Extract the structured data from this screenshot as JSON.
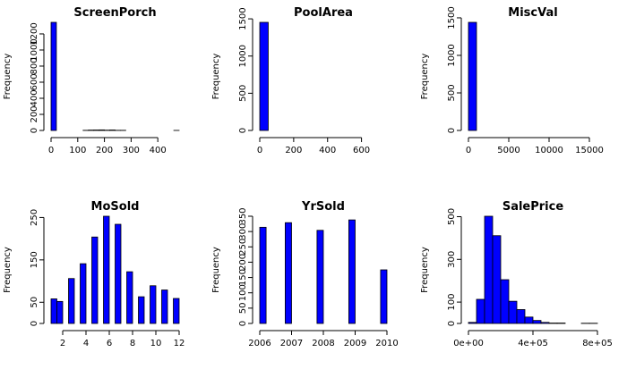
{
  "colors": {
    "bar_fill": "#0000ff",
    "bar_stroke": "#000000",
    "axis": "#000000",
    "background": "#ffffff"
  },
  "chart_data": [
    {
      "type": "bar",
      "title": "ScreenPorch",
      "ylabel": "Frequency",
      "xlabel": "",
      "bins": [
        [
          0,
          20,
          1344
        ],
        [
          20,
          40,
          0
        ],
        [
          40,
          60,
          0
        ],
        [
          60,
          80,
          0
        ],
        [
          80,
          100,
          0
        ],
        [
          100,
          120,
          0
        ],
        [
          120,
          140,
          2
        ],
        [
          140,
          160,
          5
        ],
        [
          160,
          180,
          6
        ],
        [
          180,
          200,
          7
        ],
        [
          200,
          220,
          4
        ],
        [
          220,
          240,
          6
        ],
        [
          240,
          260,
          2
        ],
        [
          260,
          280,
          2
        ],
        [
          280,
          300,
          0
        ],
        [
          300,
          320,
          0
        ],
        [
          320,
          340,
          0
        ],
        [
          340,
          360,
          0
        ],
        [
          360,
          380,
          0
        ],
        [
          380,
          400,
          0
        ],
        [
          400,
          420,
          0
        ],
        [
          420,
          440,
          0
        ],
        [
          440,
          460,
          0
        ],
        [
          460,
          480,
          1
        ]
      ],
      "xlim": [
        0,
        480
      ],
      "ylim": [
        0,
        1344
      ],
      "xticks": [
        0,
        100,
        200,
        300,
        400
      ],
      "xticklabels": [
        "0",
        "100",
        "200",
        "300",
        "400"
      ],
      "yticks": [
        0,
        200,
        400,
        600,
        800,
        1000,
        1200
      ],
      "yticklabels": [
        "0",
        "200",
        "400",
        "600",
        "800",
        "1000",
        "1200"
      ]
    },
    {
      "type": "bar",
      "title": "PoolArea",
      "ylabel": "Frequency",
      "xlabel": "",
      "bins": [
        [
          0,
          50,
          1453
        ],
        [
          50,
          100,
          0
        ],
        [
          100,
          150,
          0
        ],
        [
          150,
          200,
          0
        ],
        [
          200,
          250,
          0
        ],
        [
          250,
          300,
          0
        ],
        [
          300,
          350,
          0
        ],
        [
          350,
          400,
          0
        ],
        [
          400,
          450,
          0
        ],
        [
          450,
          500,
          0
        ],
        [
          500,
          550,
          0
        ],
        [
          550,
          600,
          0
        ],
        [
          600,
          650,
          0
        ],
        [
          650,
          700,
          0
        ],
        [
          700,
          750,
          0
        ]
      ],
      "xlim": [
        0,
        750
      ],
      "ylim": [
        0,
        1453
      ],
      "xticks": [
        0,
        200,
        400,
        600
      ],
      "xticklabels": [
        "0",
        "200",
        "400",
        "600"
      ],
      "yticks": [
        0,
        500,
        1000,
        1500
      ],
      "yticklabels": [
        "0",
        "500",
        "1000",
        "1500"
      ]
    },
    {
      "type": "bar",
      "title": "MiscVal",
      "ylabel": "Frequency",
      "xlabel": "",
      "bins": [
        [
          0,
          1000,
          1440
        ],
        [
          1000,
          2000,
          0
        ],
        [
          2000,
          3000,
          0
        ],
        [
          3000,
          4000,
          0
        ],
        [
          4000,
          5000,
          0
        ],
        [
          5000,
          6000,
          0
        ],
        [
          6000,
          7000,
          0
        ],
        [
          7000,
          8000,
          0
        ],
        [
          8000,
          9000,
          0
        ],
        [
          9000,
          10000,
          0
        ],
        [
          10000,
          11000,
          0
        ],
        [
          11000,
          12000,
          0
        ],
        [
          12000,
          13000,
          0
        ],
        [
          13000,
          14000,
          0
        ],
        [
          14000,
          15000,
          0
        ],
        [
          15000,
          16000,
          0
        ]
      ],
      "xlim": [
        0,
        16000
      ],
      "ylim": [
        0,
        1440
      ],
      "xticks": [
        0,
        5000,
        10000,
        15000
      ],
      "xticklabels": [
        "0",
        "5000",
        "10000",
        "15000"
      ],
      "yticks": [
        0,
        500,
        1000,
        1500
      ],
      "yticklabels": [
        "0",
        "500",
        "1000",
        "1500"
      ]
    },
    {
      "type": "bar",
      "title": "MoSold",
      "ylabel": "Frequency",
      "xlabel": "",
      "bins": [
        [
          1.0,
          1.5,
          58
        ],
        [
          1.5,
          2.0,
          52
        ],
        [
          2.5,
          3.0,
          106
        ],
        [
          3.5,
          4.0,
          141
        ],
        [
          4.5,
          5.0,
          204
        ],
        [
          5.5,
          6.0,
          253
        ],
        [
          6.5,
          7.0,
          234
        ],
        [
          7.5,
          8.0,
          122
        ],
        [
          8.5,
          9.0,
          63
        ],
        [
          9.5,
          10.0,
          89
        ],
        [
          10.5,
          11.0,
          79
        ],
        [
          11.5,
          12.0,
          59
        ]
      ],
      "xlim": [
        1,
        12
      ],
      "ylim": [
        0,
        253
      ],
      "xticks": [
        2,
        4,
        6,
        8,
        10,
        12
      ],
      "xticklabels": [
        "2",
        "4",
        "6",
        "8",
        "10",
        "12"
      ],
      "yticks": [
        0,
        50,
        150,
        250
      ],
      "yticklabels": [
        "0",
        "50",
        "150",
        "250"
      ]
    },
    {
      "type": "bar",
      "title": "YrSold",
      "ylabel": "Frequency",
      "xlabel": "",
      "bins": [
        [
          2006.0,
          2006.2,
          314
        ],
        [
          2006.8,
          2007.0,
          329
        ],
        [
          2007.8,
          2008.0,
          304
        ],
        [
          2008.8,
          2009.0,
          338
        ],
        [
          2009.8,
          2010.0,
          175
        ]
      ],
      "xlim": [
        2006,
        2010
      ],
      "ylim": [
        0,
        350
      ],
      "xticks": [
        2006,
        2007,
        2008,
        2009,
        2010
      ],
      "xticklabels": [
        "2006",
        "2007",
        "2008",
        "2009",
        "2010"
      ],
      "yticks": [
        0,
        50,
        100,
        150,
        200,
        250,
        300,
        350
      ],
      "yticklabels": [
        "0",
        "50",
        "100",
        "150",
        "200",
        "250",
        "300",
        "350"
      ]
    },
    {
      "type": "bar",
      "title": "SalePrice",
      "ylabel": "Frequency",
      "xlabel": "",
      "bins": [
        [
          0,
          50000,
          5
        ],
        [
          50000,
          100000,
          113
        ],
        [
          100000,
          150000,
          502
        ],
        [
          150000,
          200000,
          411
        ],
        [
          200000,
          250000,
          205
        ],
        [
          250000,
          300000,
          104
        ],
        [
          300000,
          350000,
          65
        ],
        [
          350000,
          400000,
          30
        ],
        [
          400000,
          450000,
          14
        ],
        [
          450000,
          500000,
          5
        ],
        [
          500000,
          550000,
          2
        ],
        [
          550000,
          600000,
          2
        ],
        [
          600000,
          650000,
          0
        ],
        [
          650000,
          700000,
          0
        ],
        [
          700000,
          750000,
          1
        ],
        [
          750000,
          800000,
          1
        ]
      ],
      "xlim": [
        0,
        800000
      ],
      "ylim": [
        0,
        502
      ],
      "xticks": [
        0,
        400000,
        800000
      ],
      "xticklabels": [
        "0e+00",
        "4e+05",
        "8e+05"
      ],
      "yticks": [
        0,
        100,
        300,
        500
      ],
      "yticklabels": [
        "0",
        "100",
        "300",
        "500"
      ]
    }
  ]
}
